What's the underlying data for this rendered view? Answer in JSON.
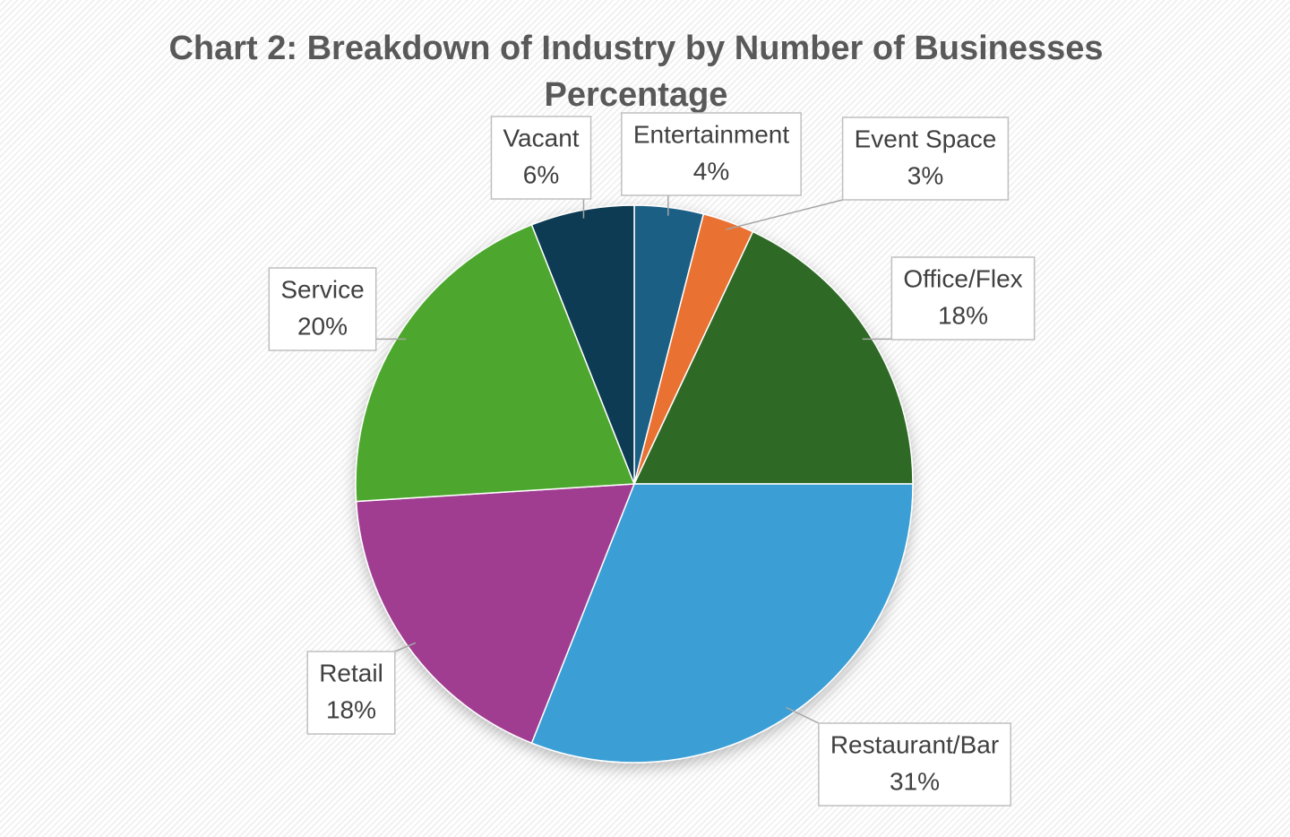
{
  "chart_data": {
    "type": "pie",
    "title": "Chart 2: Breakdown of Industry by Number of Businesses Percentage",
    "categories": [
      "Entertainment",
      "Event Space",
      "Office/Flex",
      "Restaurant/Bar",
      "Retail",
      "Service",
      "Vacant"
    ],
    "values": [
      4,
      3,
      18,
      31,
      18,
      20,
      6
    ],
    "value_labels": [
      "4%",
      "3%",
      "18%",
      "31%",
      "18%",
      "20%",
      "6%"
    ],
    "colors": [
      "#1f5f85",
      "#e97132",
      "#2f6b25",
      "#3a9fd6",
      "#a03d91",
      "#4ea72e",
      "#0f3a52"
    ]
  }
}
